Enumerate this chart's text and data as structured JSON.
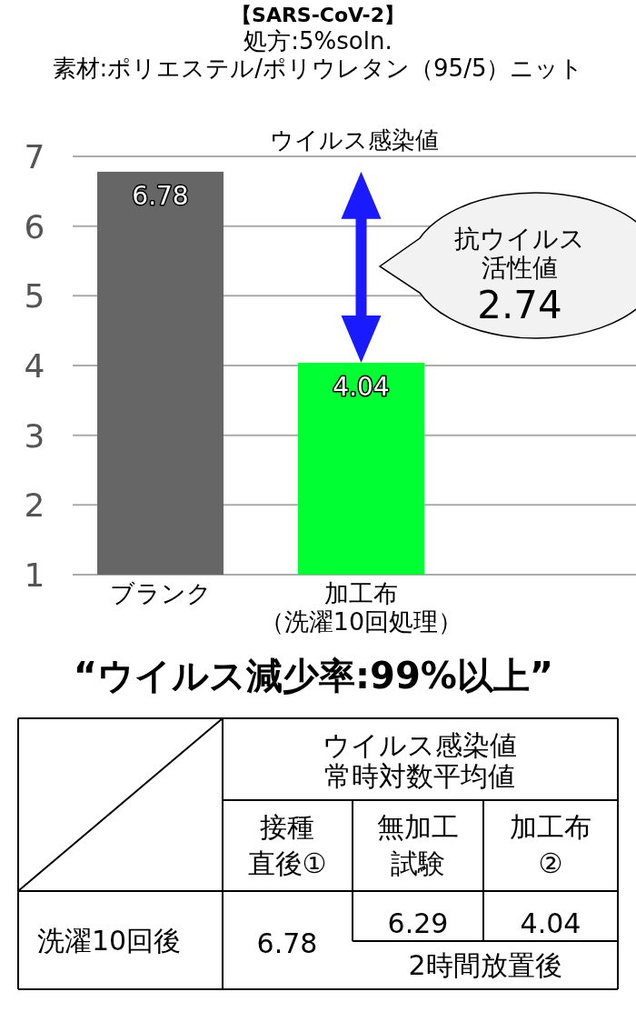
{
  "chart_data": {
    "type": "bar",
    "title": "【SARS-CoV-2】",
    "subtitle": "処方:5%soln.\n素材:ポリエステル/ポリウレタン（95/5）ニット",
    "categories": [
      "ブランク",
      "加工布（洗濯10回処理）"
    ],
    "values": [
      6.78,
      4.04
    ],
    "colors": [
      "#666666",
      "#00ff33"
    ],
    "ylim": [
      1,
      7
    ],
    "yticks": [
      1,
      2,
      3,
      4,
      5,
      6,
      7
    ],
    "grid": "y",
    "data_labels": true,
    "annotations": [
      "ウイルス感染値",
      "抗ウイルス",
      "活性値",
      "2.74",
      "“ウイルス減少率:99%以上”",
      "ウイルス感染値",
      "常時対数平均値",
      "接種",
      "直後①",
      "無加工",
      "試験",
      "加工布",
      "②",
      "洗濯10回後",
      "6.78",
      "6.29",
      "4.04",
      "2時間放置後"
    ]
  }
}
